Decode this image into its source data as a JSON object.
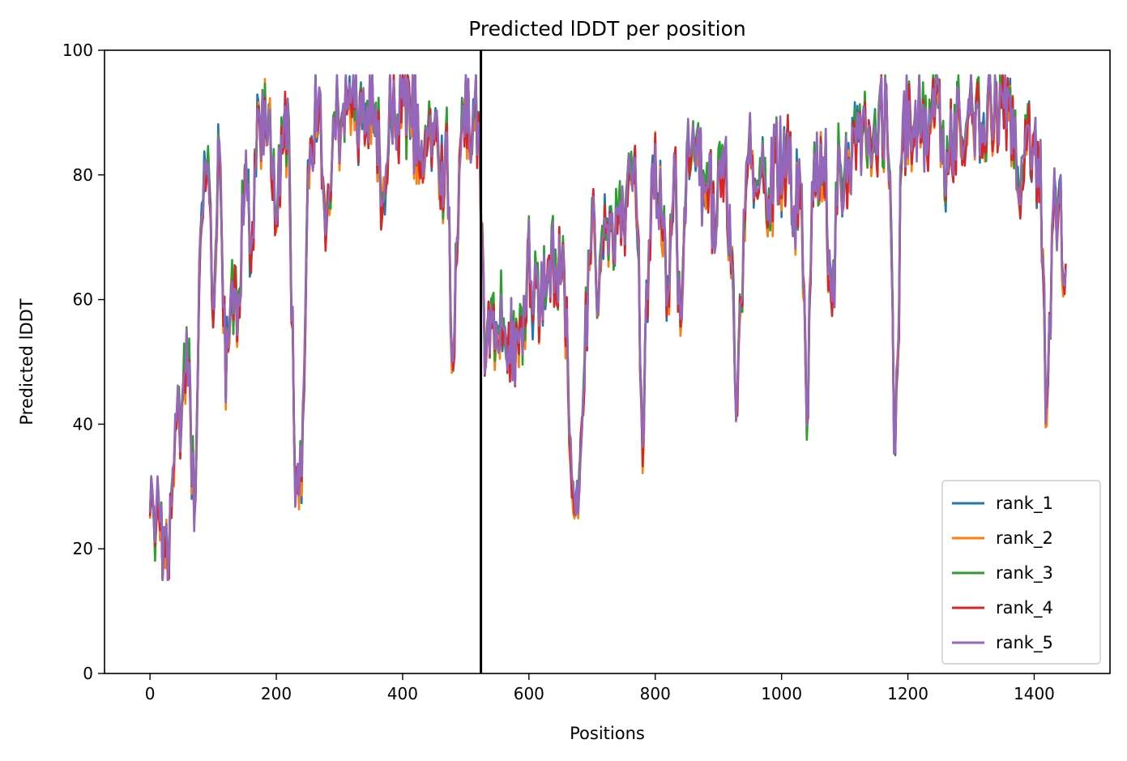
{
  "chart_data": {
    "type": "line",
    "title": "Predicted lDDT per position",
    "xlabel": "Positions",
    "ylabel": "Predicted lDDT",
    "xlim": [
      -72,
      1520
    ],
    "ylim": [
      0,
      100
    ],
    "xticks": [
      0,
      200,
      400,
      600,
      800,
      1000,
      1200,
      1400
    ],
    "yticks": [
      0,
      20,
      40,
      60,
      80,
      100
    ],
    "grid": false,
    "legend_position": "lower-right",
    "vline": {
      "x": 524,
      "color": "#000000"
    },
    "anchor_x": [
      0,
      10,
      20,
      30,
      40,
      50,
      60,
      70,
      80,
      90,
      100,
      110,
      120,
      130,
      140,
      150,
      160,
      170,
      180,
      190,
      200,
      210,
      220,
      230,
      240,
      250,
      260,
      270,
      280,
      290,
      300,
      310,
      320,
      330,
      340,
      350,
      360,
      370,
      380,
      390,
      400,
      410,
      420,
      430,
      440,
      450,
      460,
      470,
      480,
      490,
      500,
      510,
      520,
      530,
      540,
      550,
      560,
      570,
      580,
      590,
      600,
      610,
      620,
      630,
      640,
      650,
      660,
      670,
      680,
      690,
      700,
      710,
      720,
      730,
      740,
      750,
      760,
      770,
      780,
      790,
      800,
      810,
      820,
      830,
      840,
      850,
      860,
      870,
      880,
      890,
      900,
      910,
      920,
      930,
      940,
      950,
      960,
      970,
      980,
      990,
      1000,
      1010,
      1020,
      1030,
      1040,
      1050,
      1060,
      1070,
      1080,
      1090,
      1100,
      1110,
      1120,
      1130,
      1140,
      1150,
      1160,
      1170,
      1180,
      1190,
      1200,
      1210,
      1220,
      1230,
      1240,
      1250,
      1260,
      1270,
      1280,
      1290,
      1300,
      1310,
      1320,
      1330,
      1340,
      1350,
      1360,
      1370,
      1380,
      1390,
      1400,
      1410,
      1420,
      1430,
      1440,
      1450
    ],
    "anchor_y": [
      25,
      24,
      18,
      22,
      35,
      40,
      50,
      25,
      65,
      85,
      60,
      85,
      45,
      60,
      55,
      80,
      70,
      85,
      88,
      90,
      70,
      88,
      85,
      30,
      30,
      75,
      90,
      90,
      70,
      90,
      88,
      92,
      94,
      85,
      90,
      88,
      85,
      75,
      90,
      88,
      92,
      90,
      88,
      80,
      85,
      88,
      80,
      82,
      50,
      85,
      90,
      88,
      90,
      55,
      55,
      50,
      60,
      55,
      50,
      55,
      65,
      60,
      58,
      70,
      62,
      68,
      55,
      25,
      25,
      55,
      75,
      60,
      75,
      70,
      72,
      70,
      85,
      78,
      40,
      70,
      80,
      75,
      55,
      85,
      50,
      80,
      85,
      80,
      82,
      75,
      78,
      80,
      70,
      40,
      70,
      85,
      80,
      85,
      75,
      82,
      80,
      82,
      75,
      80,
      35,
      82,
      78,
      80,
      55,
      82,
      80,
      85,
      88,
      85,
      88,
      87,
      90,
      85,
      30,
      85,
      88,
      86,
      90,
      85,
      90,
      88,
      78,
      85,
      90,
      88,
      90,
      88,
      85,
      90,
      88,
      90,
      88,
      85,
      80,
      88,
      85,
      80,
      40,
      75,
      78,
      62
    ],
    "series": [
      {
        "name": "rank_1",
        "color": "#1f77b4",
        "seed": 11,
        "bias": 0.0
      },
      {
        "name": "rank_2",
        "color": "#ff7f0e",
        "seed": 23,
        "bias": -0.6
      },
      {
        "name": "rank_3",
        "color": "#2ca02c",
        "seed": 37,
        "bias": 0.6
      },
      {
        "name": "rank_4",
        "color": "#d62728",
        "seed": 53,
        "bias": -0.3
      },
      {
        "name": "rank_5",
        "color": "#9467bd",
        "seed": 71,
        "bias": 0.3
      }
    ]
  }
}
